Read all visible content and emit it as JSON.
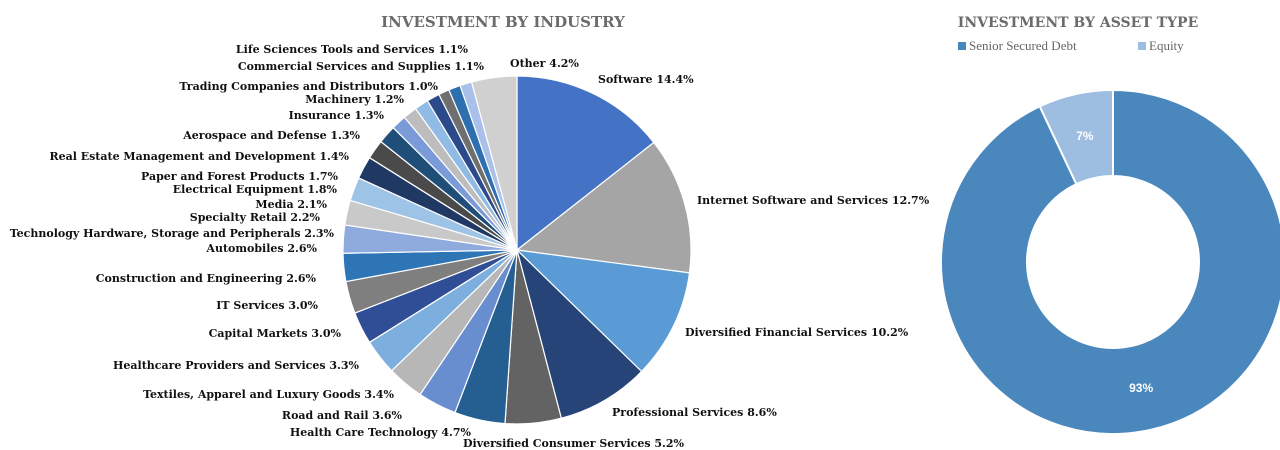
{
  "chart_data": [
    {
      "type": "pie",
      "title": "INVESTMENT BY INDUSTRY",
      "slices": [
        {
          "label": "Software",
          "value": 14.4,
          "text": "Software 14.4%",
          "color": "#4472c4"
        },
        {
          "label": "Internet Software and Services",
          "value": 12.7,
          "text": "Internet Software and Services 12.7%",
          "color": "#a5a5a5"
        },
        {
          "label": "Diversified Financial Services",
          "value": 10.2,
          "text": "Diversified Financial Services 10.2%",
          "color": "#5b9bd5"
        },
        {
          "label": "Professional Services",
          "value": 8.6,
          "text": "Professional Services 8.6%",
          "color": "#264478"
        },
        {
          "label": "Diversified Consumer Services",
          "value": 5.2,
          "text": "Diversified Consumer Services 5.2%",
          "color": "#636363"
        },
        {
          "label": "Health Care Technology",
          "value": 4.7,
          "text": "Health Care Technology 4.7%",
          "color": "#255e91"
        },
        {
          "label": "Road and Rail",
          "value": 3.6,
          "text": "Road and Rail 3.6%",
          "color": "#698ed0"
        },
        {
          "label": "Textiles, Apparel and Luxury Goods",
          "value": 3.4,
          "text": "Textiles, Apparel and Luxury Goods 3.4%",
          "color": "#b7b7b7"
        },
        {
          "label": "Healthcare Providers and Services",
          "value": 3.3,
          "text": "Healthcare Providers and Services 3.3%",
          "color": "#7cafdd"
        },
        {
          "label": "Capital Markets",
          "value": 3.0,
          "text": "Capital Markets 3.0%",
          "color": "#2f4e96"
        },
        {
          "label": "IT Services",
          "value": 3.0,
          "text": "IT Services 3.0%",
          "color": "#7f7f7f"
        },
        {
          "label": "Construction and Engineering",
          "value": 2.6,
          "text": "Construction and Engineering 2.6%",
          "color": "#2e75b6"
        },
        {
          "label": "Automobiles",
          "value": 2.6,
          "text": "Automobiles 2.6%",
          "color": "#8faadc"
        },
        {
          "label": "Technology Hardware, Storage and Peripherals",
          "value": 2.3,
          "text": "Technology Hardware, Storage and Peripherals 2.3%",
          "color": "#c9c9c9"
        },
        {
          "label": "Specialty Retail",
          "value": 2.2,
          "text": "Specialty Retail 2.2%",
          "color": "#9dc3e6"
        },
        {
          "label": "Media",
          "value": 2.1,
          "text": "Media 2.1%",
          "color": "#1f3864"
        },
        {
          "label": "Electrical Equipment",
          "value": 1.8,
          "text": "Electrical Equipment 1.8%",
          "color": "#4a4a4a"
        },
        {
          "label": "Paper and Forest Products",
          "value": 1.7,
          "text": "Paper and Forest Products 1.7%",
          "color": "#1f4e79"
        },
        {
          "label": "Real Estate Management and Development",
          "value": 1.4,
          "text": "Real Estate Management and Development 1.4%",
          "color": "#7b9bd8"
        },
        {
          "label": "Aerospace and Defense",
          "value": 1.3,
          "text": "Aerospace and Defense 1.3%",
          "color": "#bdbdbd"
        },
        {
          "label": "Insurance",
          "value": 1.3,
          "text": "Insurance 1.3%",
          "color": "#8fbbe4"
        },
        {
          "label": "Machinery",
          "value": 1.2,
          "text": "Machinery 1.2%",
          "color": "#2c4a8a"
        },
        {
          "label": "Trading Companies and Distributors",
          "value": 1.0,
          "text": "Trading Companies and Distributors 1.0%",
          "color": "#6f6f6f"
        },
        {
          "label": "Commercial Services and Supplies",
          "value": 1.1,
          "text": "Commercial Services and Supplies 1.1%",
          "color": "#2e6fb0"
        },
        {
          "label": "Life Sciences Tools and Services",
          "value": 1.1,
          "text": "Life Sciences Tools and Services 1.1%",
          "color": "#a9c0ea"
        },
        {
          "label": "Other",
          "value": 4.2,
          "text": "Other 4.2%",
          "color": "#d0d0d0"
        }
      ]
    },
    {
      "type": "pie",
      "subtype": "donut",
      "title": "INVESTMENT BY ASSET TYPE",
      "legend_position": "top",
      "slices": [
        {
          "label": "Senior Secured Debt",
          "value": 93,
          "text": "93%",
          "color": "#4a87bd"
        },
        {
          "label": "Equity",
          "value": 7,
          "text": "7%",
          "color": "#9dbde1"
        }
      ]
    }
  ]
}
